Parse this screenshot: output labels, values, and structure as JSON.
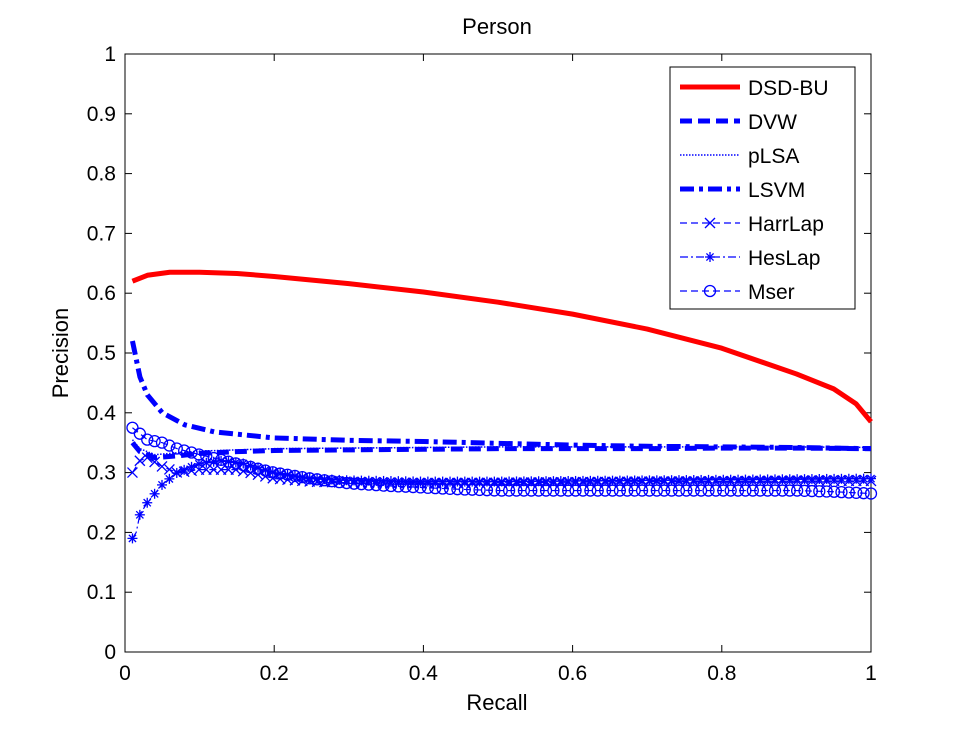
{
  "chart_data": {
    "type": "line",
    "title": "Person",
    "xlabel": "Recall",
    "ylabel": "Precision",
    "xlim": [
      0,
      1
    ],
    "ylim": [
      0,
      1
    ],
    "xticks": [
      "0",
      "0.2",
      "0.4",
      "0.6",
      "0.8",
      "1"
    ],
    "xtick_values": [
      0,
      0.2,
      0.4,
      0.6,
      0.8,
      1
    ],
    "yticks": [
      "0",
      "0.1",
      "0.2",
      "0.3",
      "0.4",
      "0.5",
      "0.6",
      "0.7",
      "0.8",
      "0.9",
      "1"
    ],
    "ytick_values": [
      0,
      0.1,
      0.2,
      0.3,
      0.4,
      0.5,
      0.6,
      0.7,
      0.8,
      0.9,
      1
    ],
    "grid": false,
    "legend_position": "top-right",
    "series": [
      {
        "name": "DSD-BU",
        "color": "#ff0000",
        "style": "solid-thick",
        "x": [
          0.01,
          0.03,
          0.06,
          0.1,
          0.15,
          0.2,
          0.3,
          0.4,
          0.5,
          0.6,
          0.7,
          0.8,
          0.9,
          0.95,
          0.98,
          1.0
        ],
        "y": [
          0.62,
          0.63,
          0.635,
          0.635,
          0.633,
          0.628,
          0.616,
          0.602,
          0.585,
          0.565,
          0.54,
          0.508,
          0.465,
          0.44,
          0.415,
          0.385
        ]
      },
      {
        "name": "DVW",
        "color": "#0000ff",
        "style": "dashed-thick",
        "x": [
          0.01,
          0.02,
          0.04,
          0.07,
          0.1,
          0.15,
          0.2,
          0.3,
          0.4,
          0.5,
          0.6,
          0.7,
          0.8,
          0.9,
          1.0
        ],
        "y": [
          0.35,
          0.335,
          0.325,
          0.328,
          0.332,
          0.335,
          0.337,
          0.338,
          0.339,
          0.34,
          0.34,
          0.34,
          0.341,
          0.341,
          0.34
        ]
      },
      {
        "name": "pLSA",
        "color": "#0000ff",
        "style": "dotted",
        "x": [
          0.01,
          0.02,
          0.04,
          0.07,
          0.1,
          0.15,
          0.2,
          0.3,
          0.4,
          0.5,
          0.6,
          0.7,
          0.8,
          0.9,
          1.0
        ],
        "y": [
          0.355,
          0.34,
          0.33,
          0.333,
          0.336,
          0.338,
          0.34,
          0.341,
          0.342,
          0.343,
          0.343,
          0.343,
          0.343,
          0.343,
          0.342
        ]
      },
      {
        "name": "LSVM",
        "color": "#0000ff",
        "style": "dashdot-thick",
        "x": [
          0.01,
          0.015,
          0.02,
          0.03,
          0.05,
          0.08,
          0.12,
          0.2,
          0.3,
          0.4,
          0.5,
          0.6,
          0.7,
          0.8,
          0.9,
          1.0
        ],
        "y": [
          0.52,
          0.49,
          0.46,
          0.43,
          0.4,
          0.38,
          0.368,
          0.358,
          0.354,
          0.352,
          0.349,
          0.346,
          0.344,
          0.343,
          0.342,
          0.34
        ]
      },
      {
        "name": "HarrLap",
        "color": "#0000ff",
        "style": "dashed-x",
        "x": [
          0.01,
          0.02,
          0.03,
          0.05,
          0.07,
          0.1,
          0.15,
          0.2,
          0.25,
          0.3,
          0.4,
          0.5,
          0.6,
          0.7,
          0.8,
          0.9,
          1.0
        ],
        "y": [
          0.3,
          0.32,
          0.325,
          0.31,
          0.3,
          0.305,
          0.305,
          0.29,
          0.285,
          0.283,
          0.282,
          0.283,
          0.284,
          0.285,
          0.285,
          0.286,
          0.286
        ]
      },
      {
        "name": "HesLap",
        "color": "#0000ff",
        "style": "dashdot-asterisk",
        "x": [
          0.01,
          0.015,
          0.02,
          0.03,
          0.05,
          0.07,
          0.1,
          0.13,
          0.16,
          0.2,
          0.25,
          0.3,
          0.4,
          0.5,
          0.6,
          0.7,
          0.8,
          0.9,
          1.0
        ],
        "y": [
          0.19,
          0.2,
          0.23,
          0.25,
          0.28,
          0.3,
          0.315,
          0.32,
          0.315,
          0.3,
          0.29,
          0.287,
          0.285,
          0.285,
          0.286,
          0.287,
          0.288,
          0.289,
          0.29
        ]
      },
      {
        "name": "Mser",
        "color": "#0000ff",
        "style": "dashed-circle",
        "x": [
          0.01,
          0.02,
          0.03,
          0.05,
          0.07,
          0.1,
          0.15,
          0.2,
          0.25,
          0.3,
          0.35,
          0.4,
          0.45,
          0.5,
          0.6,
          0.7,
          0.8,
          0.9,
          0.95,
          1.0
        ],
        "y": [
          0.375,
          0.365,
          0.355,
          0.35,
          0.34,
          0.33,
          0.315,
          0.3,
          0.29,
          0.282,
          0.278,
          0.275,
          0.272,
          0.27,
          0.27,
          0.27,
          0.27,
          0.27,
          0.268,
          0.265
        ]
      }
    ]
  }
}
